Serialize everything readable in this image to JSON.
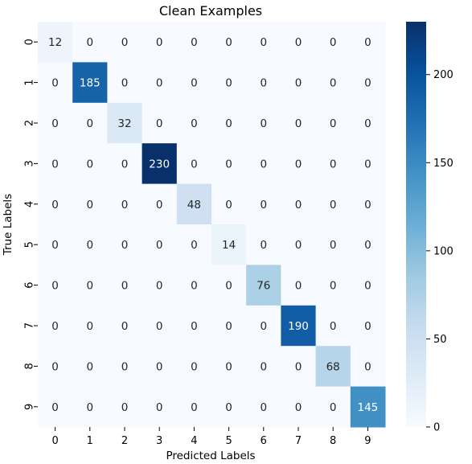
{
  "chart_data": {
    "type": "heatmap",
    "title": "Clean Examples",
    "xlabel": "Predicted Labels",
    "ylabel": "True Labels",
    "x_categories": [
      "0",
      "1",
      "2",
      "3",
      "4",
      "5",
      "6",
      "7",
      "8",
      "9"
    ],
    "y_categories": [
      "0",
      "1",
      "2",
      "3",
      "4",
      "5",
      "6",
      "7",
      "8",
      "9"
    ],
    "values": [
      [
        12,
        0,
        0,
        0,
        0,
        0,
        0,
        0,
        0,
        0
      ],
      [
        0,
        185,
        0,
        0,
        0,
        0,
        0,
        0,
        0,
        0
      ],
      [
        0,
        0,
        32,
        0,
        0,
        0,
        0,
        0,
        0,
        0
      ],
      [
        0,
        0,
        0,
        230,
        0,
        0,
        0,
        0,
        0,
        0
      ],
      [
        0,
        0,
        0,
        0,
        48,
        0,
        0,
        0,
        0,
        0
      ],
      [
        0,
        0,
        0,
        0,
        0,
        14,
        0,
        0,
        0,
        0
      ],
      [
        0,
        0,
        0,
        0,
        0,
        0,
        76,
        0,
        0,
        0
      ],
      [
        0,
        0,
        0,
        0,
        0,
        0,
        0,
        190,
        0,
        0
      ],
      [
        0,
        0,
        0,
        0,
        0,
        0,
        0,
        0,
        68,
        0
      ],
      [
        0,
        0,
        0,
        0,
        0,
        0,
        0,
        0,
        0,
        145
      ]
    ],
    "colormap": "Blues",
    "colorbar": {
      "min": 0,
      "max": 230,
      "ticks": [
        0,
        50,
        100,
        150,
        200
      ]
    },
    "annotations": true,
    "grid": false
  }
}
